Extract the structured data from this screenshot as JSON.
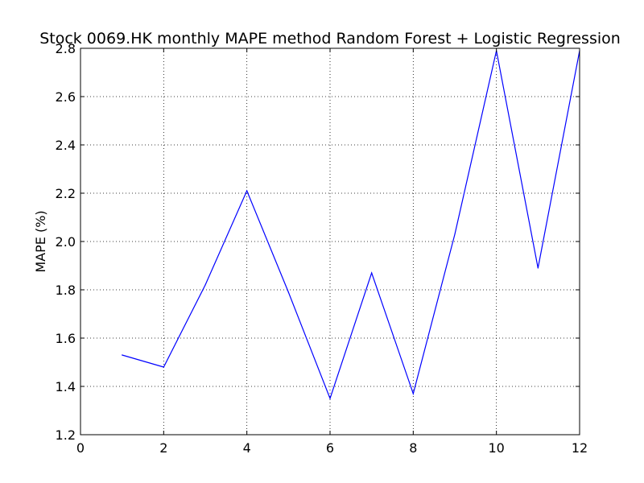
{
  "chart_data": {
    "type": "line",
    "title": "Stock 0069.HK monthly MAPE method Random Forest + Logistic Regression",
    "xlabel": "",
    "ylabel": "MAPE (%)",
    "xlim": [
      0,
      12
    ],
    "ylim": [
      1.2,
      2.8
    ],
    "x_ticks": [
      0,
      2,
      4,
      6,
      8,
      10,
      12
    ],
    "y_ticks": [
      1.2,
      1.4,
      1.6,
      1.8,
      2.0,
      2.2,
      2.4,
      2.6,
      2.8
    ],
    "x_tick_labels": [
      "0",
      "2",
      "4",
      "6",
      "8",
      "10",
      "12"
    ],
    "y_tick_labels": [
      "1.2",
      "1.4",
      "1.6",
      "1.8",
      "2.0",
      "2.2",
      "2.4",
      "2.6",
      "2.8"
    ],
    "grid": true,
    "legend": "none",
    "series": [
      {
        "color": "#0000ff",
        "x": [
          1,
          2,
          3,
          4,
          5,
          6,
          7,
          8,
          9,
          10,
          11,
          12
        ],
        "y": [
          1.53,
          1.48,
          1.82,
          2.21,
          1.79,
          1.35,
          1.87,
          1.37,
          2.03,
          2.79,
          1.89,
          2.79
        ]
      }
    ]
  }
}
